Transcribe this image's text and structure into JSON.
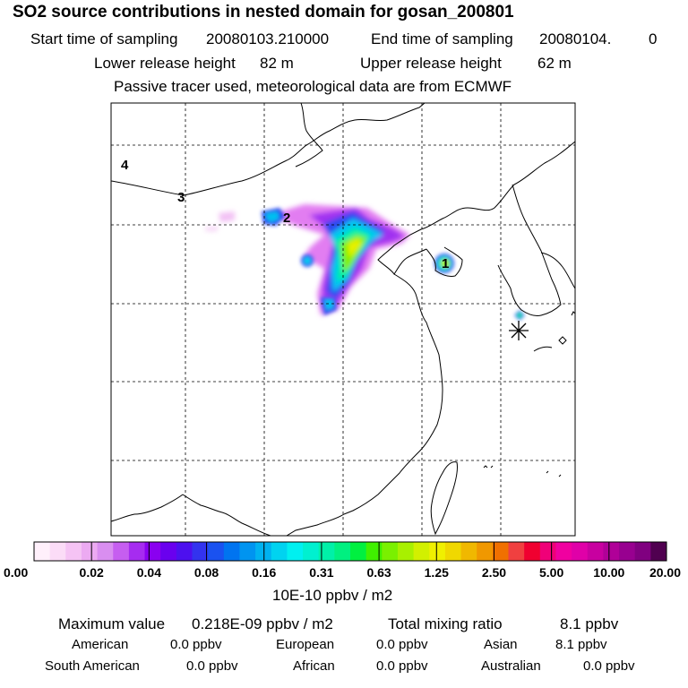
{
  "header": {
    "title": "SO2 source contributions in nested domain for gosan_200801",
    "start_label": "Start time of sampling",
    "start_value": "20080103.210000",
    "end_label": "End time of sampling",
    "end_value": "20080104.",
    "end_suffix": "0",
    "lower_label": "Lower release height",
    "lower_value": "82 m",
    "upper_label": "Upper release height",
    "upper_value": "62 m",
    "note": "Passive tracer used, meteorological data are from ECMWF"
  },
  "map": {
    "source_labels": [
      "1",
      "2",
      "3",
      "4"
    ],
    "receptor_marker": "gosan-receptor"
  },
  "colorbar": {
    "ticks": [
      "0.00",
      "0.02",
      "0.04",
      "0.08",
      "0.16",
      "0.31",
      "0.63",
      "1.25",
      "2.50",
      "5.00",
      "10.00",
      "20.00"
    ],
    "colors": [
      "#fff0fb",
      "#fbdcf7",
      "#f5c3f4",
      "#ecaaf2",
      "#d98ef0",
      "#c65ef0",
      "#a62cf0",
      "#8a00f0",
      "#6a00ef",
      "#4d10ef",
      "#3333ef",
      "#1a52f0",
      "#0074f0",
      "#0094f0",
      "#00b2f0",
      "#00d3f0",
      "#00f0f0",
      "#00f0d0",
      "#00f0a8",
      "#00f080",
      "#00f040",
      "#40f000",
      "#7af000",
      "#a8f000",
      "#d2f000",
      "#f0f000",
      "#f0d800",
      "#f0b800",
      "#f09800",
      "#f07000",
      "#f04040",
      "#f00030",
      "#f00078",
      "#f000a0",
      "#e000a8",
      "#c800a0",
      "#b00098",
      "#980090",
      "#800080",
      "#500050"
    ],
    "unit": "10E-10 ppbv / m2"
  },
  "stats": {
    "max_label": "Maximum value",
    "max_value": "0.218E-09 ppbv / m2",
    "total_label": "Total mixing ratio",
    "total_value": "8.1 ppbv",
    "regions": [
      {
        "name": "American",
        "value": "0.0 ppbv"
      },
      {
        "name": "European",
        "value": "0.0 ppbv"
      },
      {
        "name": "Asian",
        "value": "8.1 ppbv"
      },
      {
        "name": "South American",
        "value": "0.0 ppbv"
      },
      {
        "name": "African",
        "value": "0.0 ppbv"
      },
      {
        "name": "Australian",
        "value": "0.0 ppbv"
      }
    ]
  }
}
